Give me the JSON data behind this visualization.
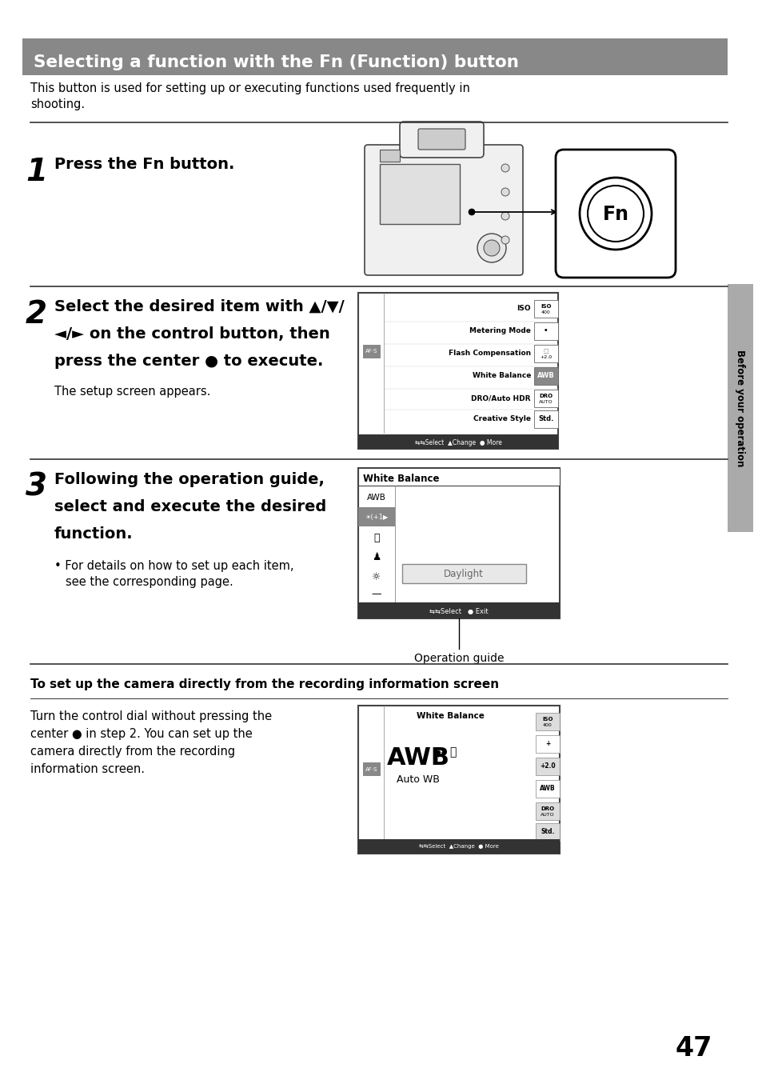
{
  "title": "Selecting a function with the Fn (Function) button",
  "title_bg": "#888888",
  "title_text_color": "#ffffff",
  "page_bg": "#ffffff",
  "text_color": "#000000",
  "sidebar_text": "Before your operation",
  "page_number": "47",
  "screen2_items": [
    "ISO",
    "Metering Mode",
    "Flash Compensation",
    "White Balance",
    "DRO/Auto HDR",
    "Creative Style"
  ],
  "screen2_icons": [
    "ISO\n400",
    "•",
    "�\n+2.0",
    "AWB",
    "DRO\nAUTO",
    "Std."
  ],
  "operation_guide_label": "Operation guide",
  "section_title": "To set up the camera directly from the recording information screen"
}
